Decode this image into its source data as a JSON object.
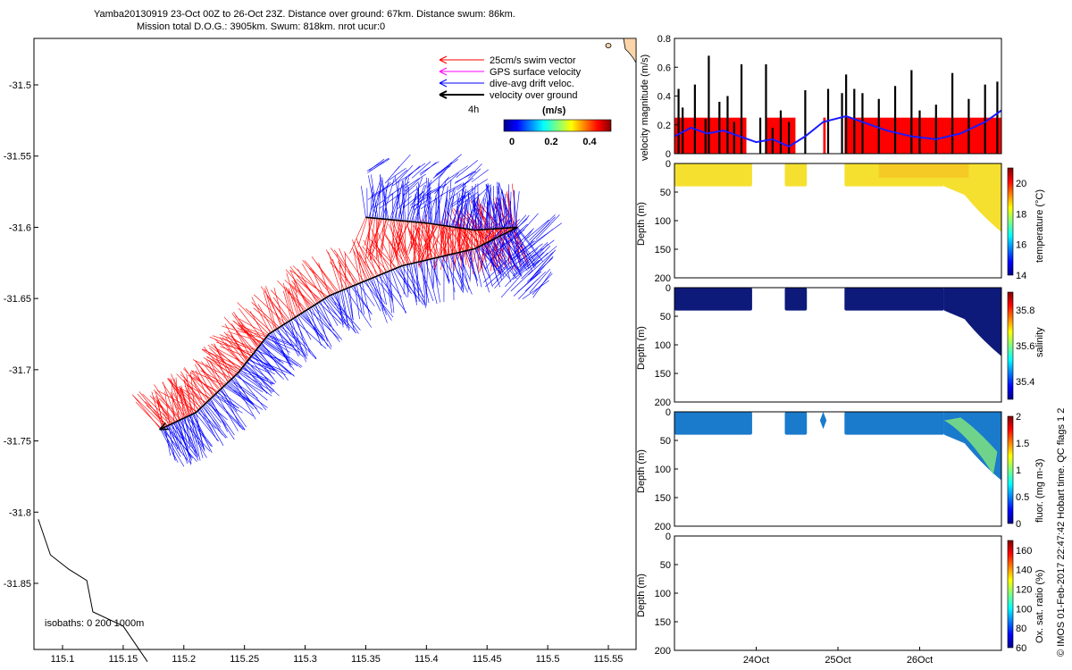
{
  "header": {
    "line1": "Yamba20130919 23-Oct 00Z to 26-Oct 23Z. Distance over ground: 67km. Distance swum: 86km.",
    "line2": "Mission total D.O.G.: 3905km. Swum: 818km. nrot ucur:0"
  },
  "credit": "© IMOS 01-Feb-2017 22:47:42 Hobart time. QC flags 1  2",
  "colors": {
    "swim": "#ff0000",
    "gps": "#ff00ff",
    "drift": "#0000ff",
    "ground": "#000000",
    "coast": "#000000",
    "land": "#fbd5a8",
    "heat_red": "#ff0000",
    "heat_blue": "#1a1aff",
    "temp": "#f5e030",
    "salinity": "#0d1a7a",
    "fluor": "#1a7acc"
  },
  "legend": {
    "items": [
      "25cm/s swim vector",
      "GPS surface velocity",
      "dive-avg drift veloc.",
      "velocity over ground"
    ],
    "time_tick": "4h",
    "colorbar_title": "(m/s)",
    "colorbar_ticks": [
      "0",
      "0.2",
      "0.4"
    ],
    "isobaths": "isobaths: 0   200  1000m"
  },
  "chart_data": [
    {
      "type": "scatter",
      "id": "track-map",
      "xlim": [
        115.08,
        115.58
      ],
      "ylim": [
        -31.895,
        -31.73
      ],
      "x_ticks": [
        115.1,
        115.15,
        115.2,
        115.25,
        115.3,
        115.35,
        115.4,
        115.45,
        115.5,
        115.55
      ],
      "x_tick_labels": [
        "115.1",
        "115.15",
        "115.2",
        "115.25",
        "115.3",
        "115.35",
        "115.4",
        "115.45",
        "115.5",
        "115.55"
      ],
      "y_ticks": [
        -31.5,
        -31.55,
        -31.6,
        -31.65,
        -31.7,
        -31.75,
        -31.8,
        -31.85
      ],
      "y_tick_labels": [
        "-31.5",
        "-31.55",
        "-31.6",
        "-31.65",
        "-31.7",
        "-31.75",
        "-31.8",
        "-31.85"
      ],
      "ground_track": [
        [
          115.35,
          -31.593
        ],
        [
          115.4,
          -31.597
        ],
        [
          115.44,
          -31.602
        ],
        [
          115.475,
          -31.6
        ],
        [
          115.44,
          -31.615
        ],
        [
          115.38,
          -31.627
        ],
        [
          115.32,
          -31.648
        ],
        [
          115.27,
          -31.675
        ],
        [
          115.245,
          -31.702
        ],
        [
          115.21,
          -31.73
        ],
        [
          115.18,
          -31.742
        ]
      ],
      "coastline": [
        [
          115.08,
          -31.805
        ],
        [
          115.09,
          -31.83
        ],
        [
          115.105,
          -31.84
        ],
        [
          115.12,
          -31.848
        ],
        [
          115.125,
          -31.87
        ],
        [
          115.15,
          -31.88
        ],
        [
          115.17,
          -31.905
        ]
      ]
    },
    {
      "type": "line",
      "id": "velocity-panel",
      "ylabel": "velocity magnitude (m/s)",
      "ylim": [
        0,
        0.8
      ],
      "y_ticks": [
        0,
        0.2,
        0.4,
        0.6,
        0.8
      ],
      "y_tick_labels": [
        "0",
        "0.2",
        "0.4",
        "0.6",
        "0.8"
      ],
      "xlim": [
        23.0,
        27.0
      ],
      "swim_blocks": [
        [
          23.0,
          23.88
        ],
        [
          24.13,
          24.48
        ],
        [
          24.82,
          24.85
        ],
        [
          25.08,
          27.0
        ]
      ],
      "swim_speed": 0.25,
      "drift_speed": {
        "x": [
          23.0,
          23.2,
          23.4,
          23.6,
          23.8,
          24.0,
          24.2,
          24.4,
          24.6,
          24.82,
          25.1,
          25.3,
          25.6,
          25.9,
          26.2,
          26.5,
          26.8,
          27.0
        ],
        "y": [
          0.12,
          0.18,
          0.14,
          0.16,
          0.12,
          0.08,
          0.1,
          0.05,
          0.12,
          0.22,
          0.26,
          0.22,
          0.16,
          0.12,
          0.1,
          0.14,
          0.22,
          0.3
        ]
      },
      "ground_spikes": {
        "x": [
          23.05,
          23.1,
          23.25,
          23.38,
          23.42,
          23.55,
          23.65,
          23.73,
          23.82,
          24.05,
          24.12,
          24.2,
          24.3,
          24.4,
          24.6,
          24.88,
          25.05,
          25.1,
          25.2,
          25.3,
          25.5,
          25.7,
          25.9,
          26.0,
          26.2,
          26.4,
          26.6,
          26.8,
          26.95
        ],
        "y": [
          0.45,
          0.32,
          0.48,
          0.24,
          0.68,
          0.36,
          0.4,
          0.22,
          0.62,
          0.25,
          0.62,
          0.18,
          0.3,
          0.22,
          0.44,
          0.45,
          0.42,
          0.55,
          0.45,
          0.42,
          0.38,
          0.47,
          0.58,
          0.3,
          0.34,
          0.56,
          0.38,
          0.48,
          0.5
        ]
      }
    },
    {
      "type": "heatmap",
      "id": "temperature-panel",
      "ylabel": "Depth (m)",
      "cbar_label": "temperature (°C)",
      "ylim": [
        200,
        0
      ],
      "y_ticks": [
        0,
        50,
        100,
        150,
        200
      ],
      "y_tick_labels": [
        "0",
        "50",
        "100",
        "150",
        "200"
      ],
      "cbar_range": [
        14,
        21
      ],
      "cbar_ticks": [
        "14",
        "16",
        "18",
        "20"
      ],
      "data_blocks": [
        [
          23.0,
          23.95,
          40
        ],
        [
          24.35,
          24.62,
          40
        ],
        [
          25.08,
          26.3,
          40
        ],
        [
          26.3,
          27.0,
          120
        ]
      ]
    },
    {
      "type": "heatmap",
      "id": "salinity-panel",
      "ylabel": "Depth (m)",
      "cbar_label": "salinity",
      "ylim": [
        200,
        0
      ],
      "y_ticks": [
        0,
        50,
        100,
        150,
        200
      ],
      "y_tick_labels": [
        "0",
        "50",
        "100",
        "150",
        "200"
      ],
      "cbar_range": [
        35.3,
        35.9
      ],
      "cbar_ticks": [
        "35.4",
        "35.6",
        "35.8"
      ]
    },
    {
      "type": "heatmap",
      "id": "fluor-panel",
      "ylabel": "Depth (m)",
      "cbar_label": "fluor. (mg m-3)",
      "ylim": [
        200,
        0
      ],
      "y_ticks": [
        0,
        50,
        100,
        150,
        200
      ],
      "y_tick_labels": [
        "0",
        "50",
        "100",
        "150",
        "200"
      ],
      "cbar_range": [
        0,
        2
      ],
      "cbar_ticks": [
        "0",
        "0.5",
        "1",
        "1.5",
        "2"
      ]
    },
    {
      "type": "heatmap",
      "id": "oxygen-panel",
      "ylabel": "Depth (m)",
      "cbar_label": "Ox. sat. ratio (%)",
      "ylim": [
        200,
        0
      ],
      "y_ticks": [
        0,
        50,
        100,
        150,
        200
      ],
      "y_tick_labels": [
        "0",
        "50",
        "100",
        "150",
        "200"
      ],
      "cbar_range": [
        60,
        170
      ],
      "cbar_ticks": [
        "60",
        "80",
        "100",
        "120",
        "140",
        "160"
      ],
      "x_ticks": [
        24.0,
        25.0,
        26.0
      ],
      "x_tick_labels": [
        "24Oct",
        "25Oct",
        "26Oct"
      ]
    }
  ]
}
